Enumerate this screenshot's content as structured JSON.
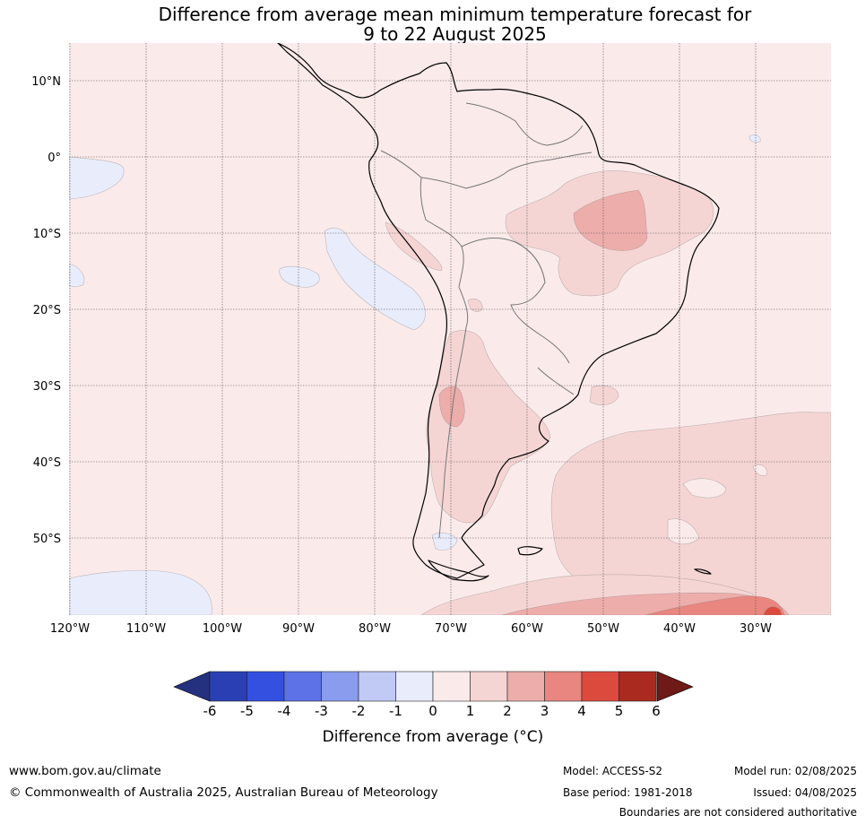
{
  "title": {
    "line1": "Difference from average mean minimum temperature forecast for",
    "line2": "9 to 22 August 2025"
  },
  "map": {
    "lat_labels": [
      "10°N",
      "0°",
      "10°S",
      "20°S",
      "30°S",
      "40°S",
      "50°S"
    ],
    "lon_labels": [
      "120°W",
      "110°W",
      "100°W",
      "90°W",
      "80°W",
      "70°W",
      "60°W",
      "50°W",
      "40°W",
      "30°W"
    ],
    "colors": {
      "neg_1_0": "#e9ecfb",
      "pos_0_1": "#fbeaea",
      "pos_1_2": "#f5d5d4",
      "pos_2_3": "#edadab",
      "pos_3_4": "#e8867f",
      "pos_4_5": "#dc4a3e"
    }
  },
  "colorbar": {
    "ticks": [
      "-6",
      "-5",
      "-4",
      "-3",
      "-2",
      "-1",
      "0",
      "1",
      "2",
      "3",
      "4",
      "5",
      "6"
    ],
    "label": "Difference from average (°C)",
    "colors": [
      "#24317f",
      "#2a3fb3",
      "#3350e0",
      "#5c72e6",
      "#8a9ced",
      "#c1c9f5",
      "#e9ecfb",
      "#fbeaea",
      "#f5d5d4",
      "#edadab",
      "#e8867f",
      "#dc4a3e",
      "#aa2a20",
      "#6e1a17"
    ]
  },
  "footer": {
    "website": "www.bom.gov.au/climate",
    "copyright": "© Commonwealth of Australia 2025, Australian Bureau of Meteorology",
    "model": "Model: ACCESS-S2",
    "base_period": "Base period: 1981-2018",
    "model_run": "Model run: 02/08/2025",
    "issued": "Issued: 04/08/2025",
    "disclaimer": "Boundaries are not considered authoritative"
  }
}
